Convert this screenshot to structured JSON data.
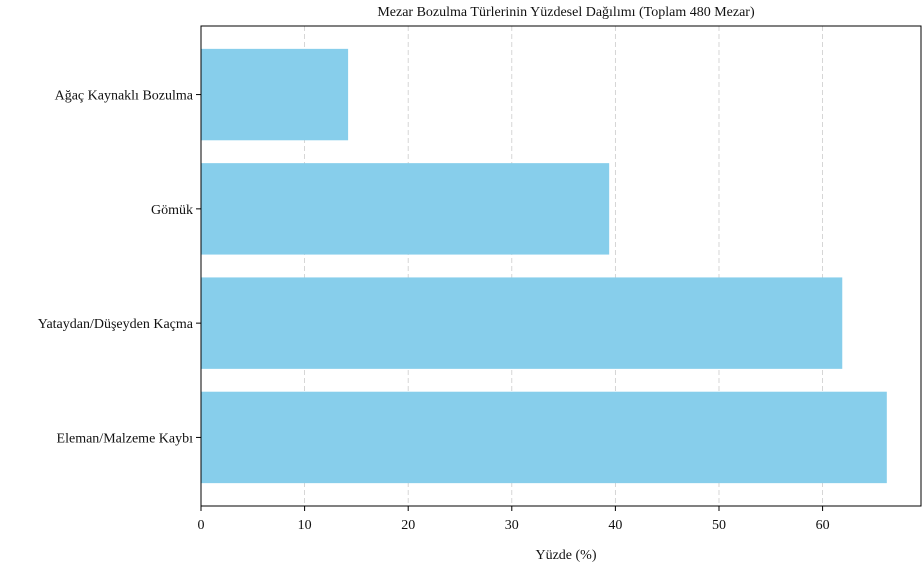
{
  "chart_data": {
    "type": "bar",
    "orientation": "horizontal",
    "title": "Mezar Bozulma Türlerinin Yüzdesel Dağılımı (Toplam 480 Mezar)",
    "xlabel": "Yüzde (%)",
    "ylabel": "",
    "categories": [
      "Eleman/Malzeme Kaybı",
      "Yataydan/Düşeyden Kaçma",
      "Gömük",
      "Ağaç Kaynaklı Bozulma"
    ],
    "values": [
      66.2,
      61.9,
      39.4,
      14.2
    ],
    "xlim": [
      0,
      69.5
    ],
    "xticks": [
      0,
      10,
      20,
      30,
      40,
      50,
      60
    ],
    "grid": "vertical dashed",
    "colors": {
      "bar": "#87ceeb",
      "grid": "#cccccc",
      "axis": "#000000"
    }
  }
}
